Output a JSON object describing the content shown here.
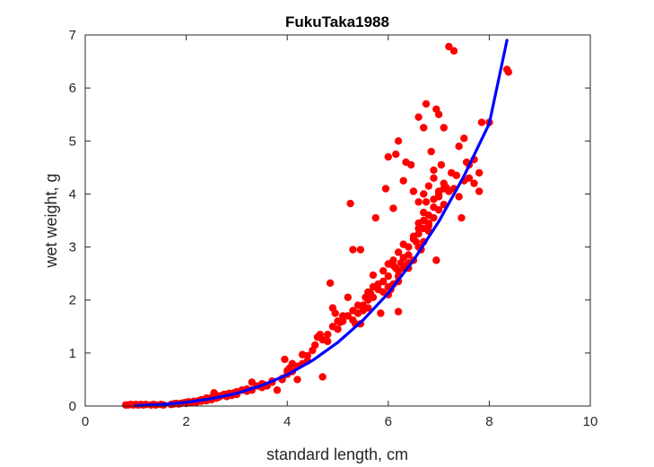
{
  "chart_data": {
    "type": "scatter",
    "title": "FukuTaka1988",
    "xlabel": "standard length, cm",
    "ylabel": "wet weight, g",
    "xlim": [
      0,
      10
    ],
    "ylim": [
      0,
      7
    ],
    "xticks": [
      "0",
      "2",
      "4",
      "6",
      "8",
      "10"
    ],
    "yticks": [
      "0",
      "1",
      "2",
      "3",
      "4",
      "5",
      "6",
      "7"
    ],
    "grid": false,
    "legend": "none",
    "colors": {
      "points": "#ff0000",
      "curve": "#0000ff",
      "axes": "#262626"
    },
    "series": [
      {
        "type": "scatter",
        "points": [
          [
            0.8,
            0.02
          ],
          [
            0.85,
            0.02
          ],
          [
            0.9,
            0.03
          ],
          [
            0.95,
            0.02
          ],
          [
            1.0,
            0.03
          ],
          [
            1.05,
            0.02
          ],
          [
            1.1,
            0.03
          ],
          [
            1.15,
            0.02
          ],
          [
            1.2,
            0.03
          ],
          [
            1.3,
            0.02
          ],
          [
            1.35,
            0.03
          ],
          [
            1.4,
            0.02
          ],
          [
            1.5,
            0.03
          ],
          [
            1.55,
            0.02
          ],
          [
            1.7,
            0.03
          ],
          [
            1.75,
            0.04
          ],
          [
            1.8,
            0.05
          ],
          [
            1.85,
            0.04
          ],
          [
            1.9,
            0.05
          ],
          [
            1.95,
            0.06
          ],
          [
            2.0,
            0.07
          ],
          [
            2.05,
            0.08
          ],
          [
            2.1,
            0.07
          ],
          [
            2.15,
            0.09
          ],
          [
            2.2,
            0.08
          ],
          [
            2.25,
            0.1
          ],
          [
            2.3,
            0.12
          ],
          [
            2.35,
            0.11
          ],
          [
            2.4,
            0.15
          ],
          [
            2.45,
            0.13
          ],
          [
            2.5,
            0.16
          ],
          [
            2.55,
            0.18
          ],
          [
            2.55,
            0.25
          ],
          [
            2.6,
            0.2
          ],
          [
            2.65,
            0.17
          ],
          [
            2.7,
            0.2
          ],
          [
            2.75,
            0.22
          ],
          [
            2.8,
            0.18
          ],
          [
            2.85,
            0.24
          ],
          [
            2.9,
            0.22
          ],
          [
            2.95,
            0.25
          ],
          [
            3.0,
            0.27
          ],
          [
            3.1,
            0.3
          ],
          [
            3.2,
            0.28
          ],
          [
            3.3,
            0.45
          ],
          [
            3.4,
            0.38
          ],
          [
            3.5,
            0.42
          ],
          [
            3.55,
            0.4
          ],
          [
            3.7,
            0.47
          ],
          [
            3.8,
            0.3
          ],
          [
            3.9,
            0.5
          ],
          [
            3.95,
            0.88
          ],
          [
            4.0,
            0.67
          ],
          [
            4.05,
            0.72
          ],
          [
            4.1,
            0.8
          ],
          [
            4.2,
            0.5
          ],
          [
            4.3,
            0.97
          ],
          [
            4.4,
            0.95
          ],
          [
            4.55,
            1.15
          ],
          [
            4.6,
            1.3
          ],
          [
            4.65,
            1.35
          ],
          [
            4.7,
            0.55
          ],
          [
            4.8,
            1.22
          ],
          [
            4.85,
            2.32
          ],
          [
            4.9,
            1.85
          ],
          [
            4.95,
            1.75
          ],
          [
            5.0,
            1.45
          ],
          [
            5.05,
            1.58
          ],
          [
            5.1,
            1.6
          ],
          [
            5.2,
            1.7
          ],
          [
            5.25,
            3.82
          ],
          [
            5.3,
            2.95
          ],
          [
            5.35,
            1.55
          ],
          [
            5.45,
            1.55
          ],
          [
            5.45,
            2.95
          ],
          [
            5.5,
            1.9
          ],
          [
            5.55,
            2.05
          ],
          [
            5.6,
            2.0
          ],
          [
            5.65,
            2.12
          ],
          [
            5.7,
            2.47
          ],
          [
            5.75,
            3.55
          ],
          [
            5.8,
            2.3
          ],
          [
            5.85,
            1.75
          ],
          [
            5.9,
            2.35
          ],
          [
            5.95,
            4.1
          ],
          [
            6.0,
            2.45
          ],
          [
            6.05,
            2.2
          ],
          [
            6.1,
            3.73
          ],
          [
            6.15,
            2.6
          ],
          [
            6.2,
            1.78
          ],
          [
            6.25,
            2.7
          ],
          [
            6.3,
            2.65
          ],
          [
            6.35,
            4.6
          ],
          [
            6.4,
            2.6
          ],
          [
            6.45,
            4.55
          ],
          [
            6.5,
            2.75
          ],
          [
            6.55,
            3.1
          ],
          [
            6.6,
            3.35
          ],
          [
            6.65,
            2.95
          ],
          [
            6.7,
            3.5
          ],
          [
            6.75,
            3.85
          ],
          [
            6.8,
            3.45
          ],
          [
            6.85,
            4.8
          ],
          [
            6.9,
            3.9
          ],
          [
            6.95,
            2.75
          ],
          [
            7.0,
            4.05
          ],
          [
            7.05,
            4.55
          ],
          [
            7.1,
            3.8
          ],
          [
            7.15,
            4.12
          ],
          [
            7.2,
            6.78
          ],
          [
            7.25,
            4.4
          ],
          [
            7.3,
            6.7
          ],
          [
            7.35,
            4.35
          ],
          [
            7.4,
            4.9
          ],
          [
            7.45,
            3.55
          ],
          [
            7.5,
            5.05
          ],
          [
            7.55,
            4.6
          ],
          [
            7.6,
            4.55
          ],
          [
            7.7,
            4.2
          ],
          [
            7.8,
            4.05
          ],
          [
            7.85,
            5.35
          ],
          [
            8.0,
            5.35
          ],
          [
            8.35,
            6.35
          ],
          [
            8.38,
            6.3
          ],
          [
            6.0,
            4.7
          ],
          [
            6.15,
            4.75
          ],
          [
            6.2,
            5.0
          ],
          [
            6.3,
            4.25
          ],
          [
            6.6,
            5.45
          ],
          [
            6.7,
            5.25
          ],
          [
            6.75,
            5.7
          ],
          [
            6.95,
            5.6
          ],
          [
            7.0,
            5.5
          ],
          [
            7.1,
            5.25
          ],
          [
            6.5,
            4.05
          ],
          [
            6.6,
            3.85
          ],
          [
            6.7,
            3.65
          ],
          [
            6.9,
            4.3
          ],
          [
            6.8,
            3.3
          ],
          [
            6.4,
            2.85
          ],
          [
            6.2,
            2.35
          ],
          [
            6.0,
            2.1
          ],
          [
            5.9,
            2.55
          ],
          [
            5.7,
            2.25
          ],
          [
            5.6,
            1.85
          ],
          [
            5.4,
            1.9
          ],
          [
            5.3,
            1.8
          ],
          [
            5.2,
            2.05
          ],
          [
            5.1,
            1.7
          ],
          [
            5.0,
            1.6
          ],
          [
            4.9,
            1.5
          ],
          [
            4.8,
            1.35
          ],
          [
            4.7,
            1.25
          ],
          [
            4.5,
            1.05
          ],
          [
            4.4,
            0.85
          ],
          [
            4.3,
            0.8
          ],
          [
            4.2,
            0.75
          ],
          [
            4.1,
            0.65
          ],
          [
            4.0,
            0.6
          ],
          [
            3.9,
            0.52
          ],
          [
            3.7,
            0.45
          ],
          [
            3.6,
            0.38
          ],
          [
            3.5,
            0.35
          ],
          [
            3.3,
            0.3
          ],
          [
            3.2,
            0.32
          ],
          [
            3.0,
            0.22
          ],
          [
            2.9,
            0.2
          ],
          [
            2.8,
            0.22
          ],
          [
            2.6,
            0.15
          ],
          [
            2.5,
            0.12
          ],
          [
            2.4,
            0.1
          ],
          [
            2.3,
            0.09
          ],
          [
            2.2,
            0.07
          ],
          [
            2.1,
            0.06
          ],
          [
            2.0,
            0.05
          ],
          [
            6.1,
            2.65
          ],
          [
            6.2,
            2.55
          ],
          [
            6.3,
            2.8
          ],
          [
            6.4,
            3.0
          ],
          [
            6.5,
            3.2
          ],
          [
            6.6,
            3.0
          ],
          [
            6.7,
            3.1
          ],
          [
            6.8,
            3.6
          ],
          [
            6.9,
            3.75
          ],
          [
            7.0,
            3.95
          ],
          [
            7.1,
            4.1
          ],
          [
            7.2,
            4.05
          ],
          [
            7.3,
            4.1
          ],
          [
            7.4,
            3.95
          ],
          [
            7.5,
            4.25
          ],
          [
            7.6,
            4.3
          ],
          [
            7.7,
            4.65
          ],
          [
            7.8,
            4.4
          ],
          [
            7.1,
            4.2
          ],
          [
            7.0,
            3.7
          ],
          [
            6.9,
            3.55
          ],
          [
            6.8,
            3.4
          ],
          [
            6.7,
            3.35
          ],
          [
            6.6,
            3.25
          ],
          [
            6.5,
            3.15
          ],
          [
            6.4,
            2.7
          ],
          [
            6.3,
            2.6
          ],
          [
            6.2,
            2.45
          ],
          [
            6.1,
            2.3
          ],
          [
            6.0,
            2.25
          ],
          [
            5.9,
            2.15
          ],
          [
            5.8,
            2.2
          ],
          [
            5.7,
            2.05
          ],
          [
            5.6,
            2.15
          ],
          [
            5.5,
            1.8
          ],
          [
            5.4,
            1.75
          ],
          [
            5.3,
            1.62
          ],
          [
            6.0,
            2.68
          ],
          [
            6.1,
            2.75
          ],
          [
            6.2,
            2.9
          ],
          [
            6.3,
            3.05
          ],
          [
            6.6,
            3.45
          ],
          [
            6.7,
            4.0
          ],
          [
            6.8,
            4.15
          ],
          [
            6.9,
            4.45
          ],
          [
            7.0,
            4.0
          ]
        ]
      },
      {
        "type": "line",
        "x": [
          1.0,
          1.5,
          2.0,
          2.5,
          3.0,
          3.5,
          4.0,
          4.5,
          5.0,
          5.5,
          6.0,
          6.5,
          7.0,
          7.5,
          8.0,
          8.35
        ],
        "y": [
          0.008,
          0.03,
          0.07,
          0.14,
          0.24,
          0.39,
          0.59,
          0.86,
          1.2,
          1.62,
          2.13,
          2.75,
          3.48,
          4.34,
          5.33,
          6.9
        ]
      }
    ]
  }
}
